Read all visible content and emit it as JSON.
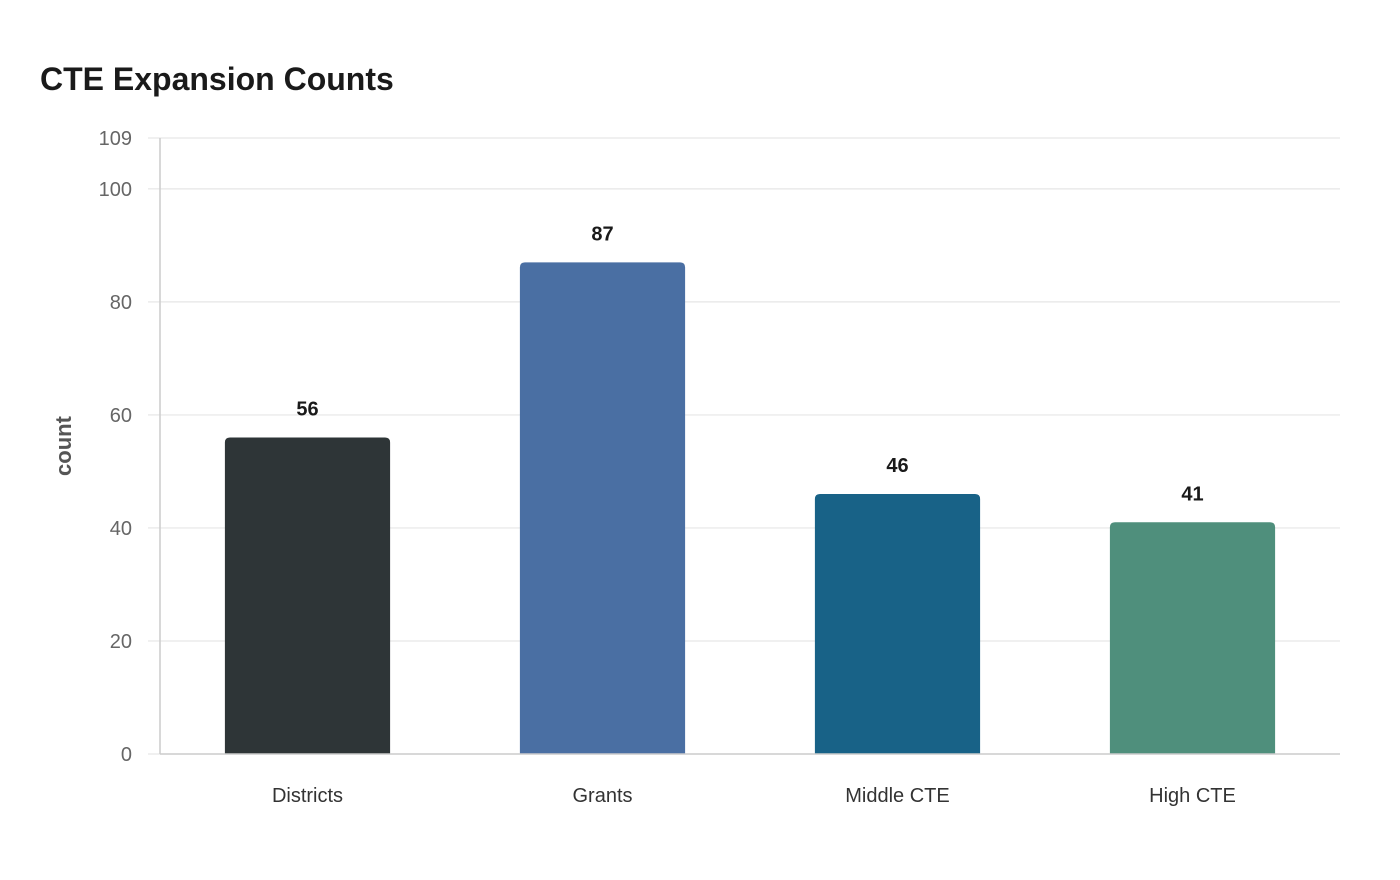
{
  "chart_data": {
    "type": "bar",
    "title": "CTE Expansion Counts",
    "xlabel": "",
    "ylabel": "count",
    "categories": [
      "Districts",
      "Grants",
      "Middle CTE",
      "High CTE"
    ],
    "values": [
      56,
      87,
      46,
      41
    ],
    "data_labels": [
      "56",
      "87",
      "46",
      "41"
    ],
    "colors": [
      "#2e3537",
      "#4a6fa3",
      "#186287",
      "#4f8f7c"
    ],
    "ylim": [
      0,
      109
    ],
    "yticks": [
      0,
      20,
      40,
      60,
      80,
      100,
      109
    ],
    "grid": true,
    "legend": "none"
  }
}
